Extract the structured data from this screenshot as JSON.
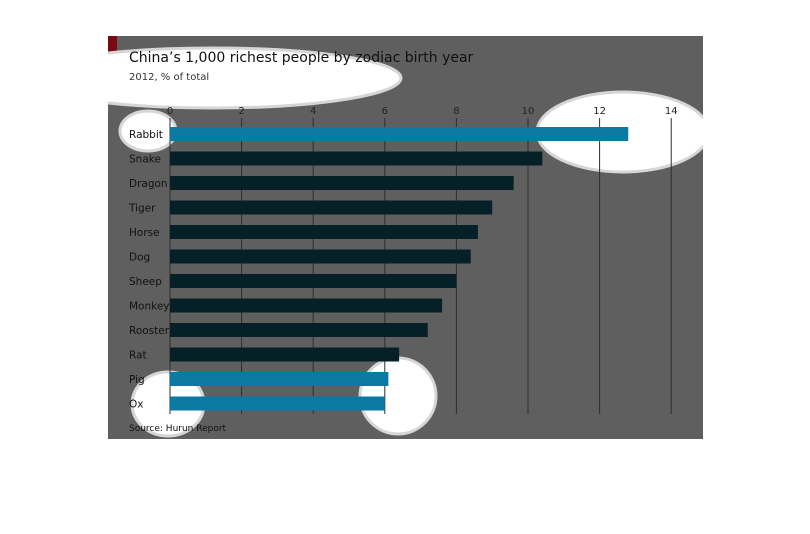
{
  "chart_data": {
    "type": "bar",
    "orientation": "horizontal",
    "title": "China’s 1,000 richest people by zodiac birth year",
    "subtitle": "2012, % of total",
    "source": "Source: Hurun Report",
    "categories": [
      "Rabbit",
      "Snake",
      "Dragon",
      "Tiger",
      "Horse",
      "Dog",
      "Sheep",
      "Monkey",
      "Rooster",
      "Rat",
      "Pig",
      "Ox"
    ],
    "values": [
      12.8,
      10.4,
      9.6,
      9.0,
      8.6,
      8.4,
      8.0,
      7.6,
      7.2,
      6.4,
      6.1,
      6.0
    ],
    "highlighted": [
      "Rabbit",
      "Pig",
      "Ox"
    ],
    "xlim": [
      0,
      14
    ],
    "ticks": [
      0,
      2,
      4,
      6,
      8,
      10,
      12,
      14
    ],
    "grid": true,
    "colors": {
      "background": "#5f5f5f",
      "bar": "#062027",
      "highlight": "#0b7aa3",
      "grid": "#2e2e2e",
      "accent": "#7a0a12",
      "annotation": "#ffffff"
    }
  }
}
